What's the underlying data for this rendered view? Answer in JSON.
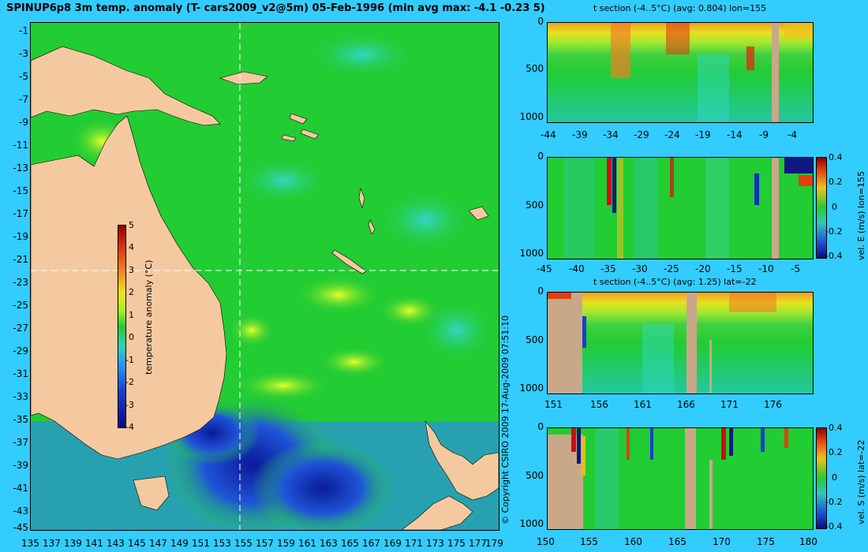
{
  "main_map": {
    "title": "SPINUP6p8 3m temp. anomaly (T- cars2009_v2@5m) 05-Feb-1996 (min avg max: -4.1 -0.23 5)",
    "lat_ticks": [
      "-1",
      "-3",
      "-5",
      "-7",
      "-9",
      "-11",
      "-13",
      "-15",
      "-17",
      "-19",
      "-21",
      "-23",
      "-25",
      "-27",
      "-29",
      "-31",
      "-33",
      "-35",
      "-37",
      "-39",
      "-41",
      "-43",
      "-45"
    ],
    "lon_ticks": [
      "135",
      "137",
      "139",
      "141",
      "143",
      "145",
      "147",
      "149",
      "151",
      "153",
      "155",
      "157",
      "159",
      "161",
      "163",
      "165",
      "167",
      "169",
      "171",
      "173",
      "175",
      "177",
      "179"
    ],
    "colorbar_label": "temperature anomaly (°C)",
    "colorbar_ticks": [
      "5",
      "4",
      "3",
      "2",
      "1",
      "0",
      "-1",
      "-2",
      "-3",
      "-4"
    ],
    "colors": {
      "ocean": "#22cc33",
      "land": "#f5c9a0",
      "crosshair": "#ffffff"
    }
  },
  "copyright": "© Copyright CSIRO 2009   17-Aug-2009 07:51:10",
  "panels": {
    "t_lon": {
      "title": "t section (-4..5°C) (avg: 0.804) lon=155",
      "y_ticks": [
        "0",
        "500",
        "1000"
      ],
      "x_ticks": [
        "-44",
        "-39",
        "-34",
        "-29",
        "-24",
        "-19",
        "-14",
        "-9",
        "-4"
      ]
    },
    "v_lon": {
      "side_label": "vel. E (m/s) lon=155",
      "y_ticks": [
        "0",
        "500",
        "1000"
      ],
      "x_ticks": [
        "-45",
        "-40",
        "-35",
        "-30",
        "-25",
        "-20",
        "-15",
        "-10",
        "-5"
      ],
      "cbar_ticks": [
        "0.4",
        "0.2",
        "0",
        "-0.2",
        "-0.4"
      ]
    },
    "t_lat": {
      "title": "t section (-4..5°C) (avg: 1.25) lat=-22",
      "y_ticks": [
        "0",
        "500",
        "1000"
      ],
      "x_ticks": [
        "151",
        "156",
        "161",
        "166",
        "171",
        "176"
      ]
    },
    "v_lat": {
      "side_label": "vel. S (m/s) lat=-22",
      "y_ticks": [
        "0",
        "500",
        "1000"
      ],
      "x_ticks": [
        "150",
        "155",
        "160",
        "165",
        "170",
        "175",
        "180"
      ],
      "cbar_ticks": [
        "0.4",
        "0.2",
        "0",
        "-0.2",
        "-0.4"
      ]
    }
  }
}
